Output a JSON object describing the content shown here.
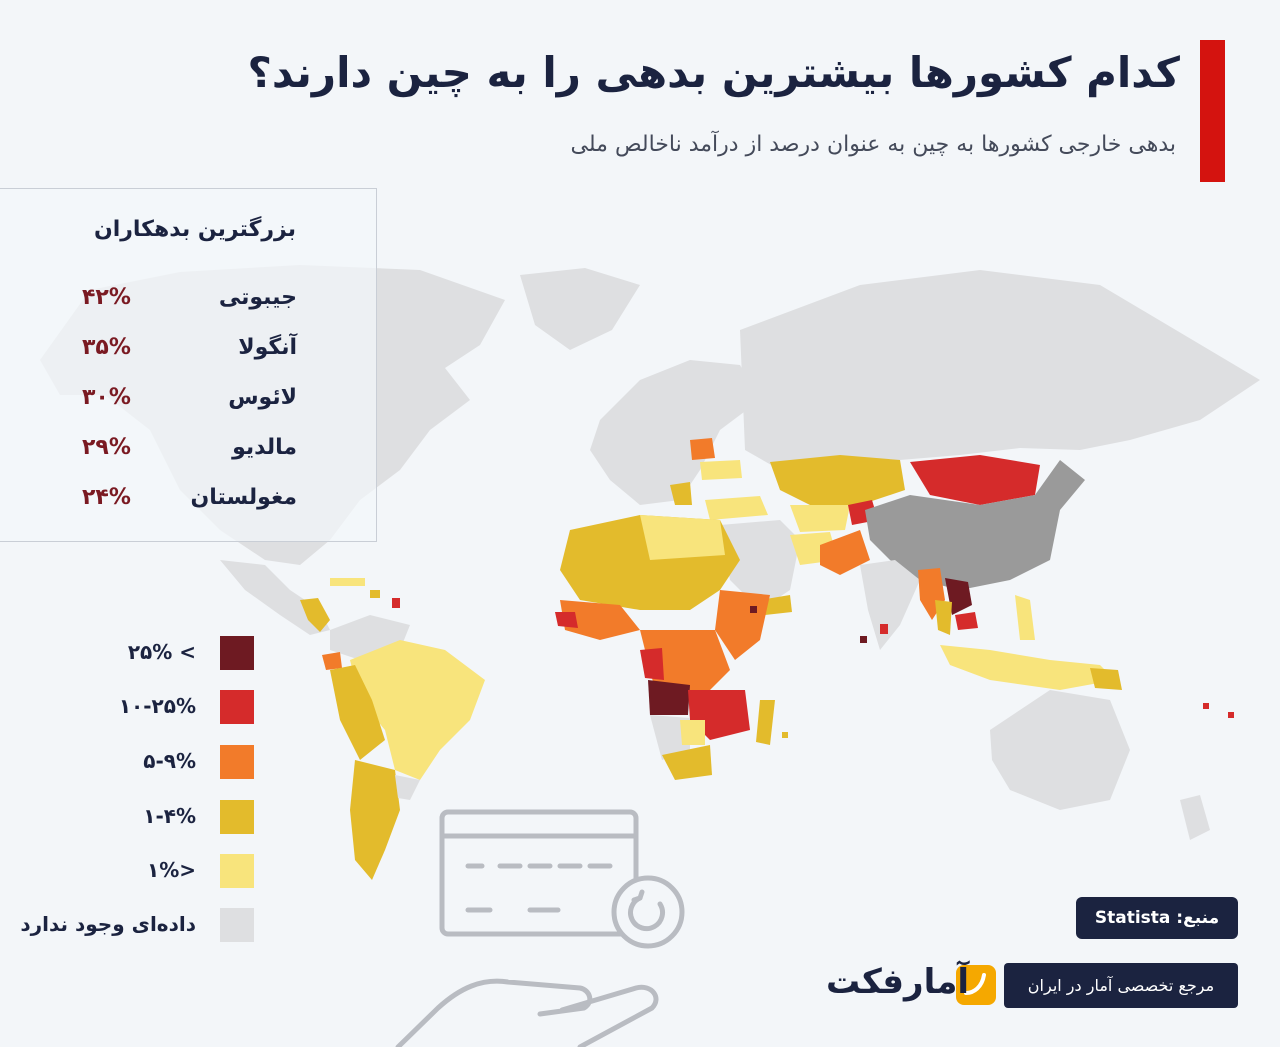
{
  "header": {
    "title": "کدام کشورها بیشترین بدهی را به چین دارند؟",
    "subtitle": "بدهی خارجی کشورها به چین به عنوان درصد از درآمد ناخالص ملی"
  },
  "top_debtors": {
    "title": "بزرگترین بدهکاران",
    "items": [
      {
        "country": "جیبوتی",
        "value": "۴۲%"
      },
      {
        "country": "آنگولا",
        "value": "۳۵%"
      },
      {
        "country": "لائوس",
        "value": "۳۰%"
      },
      {
        "country": "مالدیو",
        "value": "۲۹%"
      },
      {
        "country": "مغولستان",
        "value": "۲۴%"
      }
    ]
  },
  "legend": [
    {
      "label": "> ۲۵%",
      "color": "#6e1a22"
    },
    {
      "label": "۱۰-۲۵%",
      "color": "#d52b2b"
    },
    {
      "label": "۵-۹%",
      "color": "#f27b2a"
    },
    {
      "label": "۱-۴%",
      "color": "#e3bb2c"
    },
    {
      "label": "<۱%",
      "color": "#f8e47c"
    },
    {
      "label": "داده‌ای وجود ندارد",
      "color": "#dedfe1"
    }
  ],
  "map_colors": {
    "no_data": "#dedfe1",
    "china": "#9a9a9a",
    "ocean": "#f3f6f9"
  },
  "footer": {
    "source": "منبع: Statista",
    "tagline": "مرجع تخصصی آمار در ایران",
    "logo_text": "آمارفکت",
    "accent": "#d4130f",
    "navy": "#1b2340"
  }
}
